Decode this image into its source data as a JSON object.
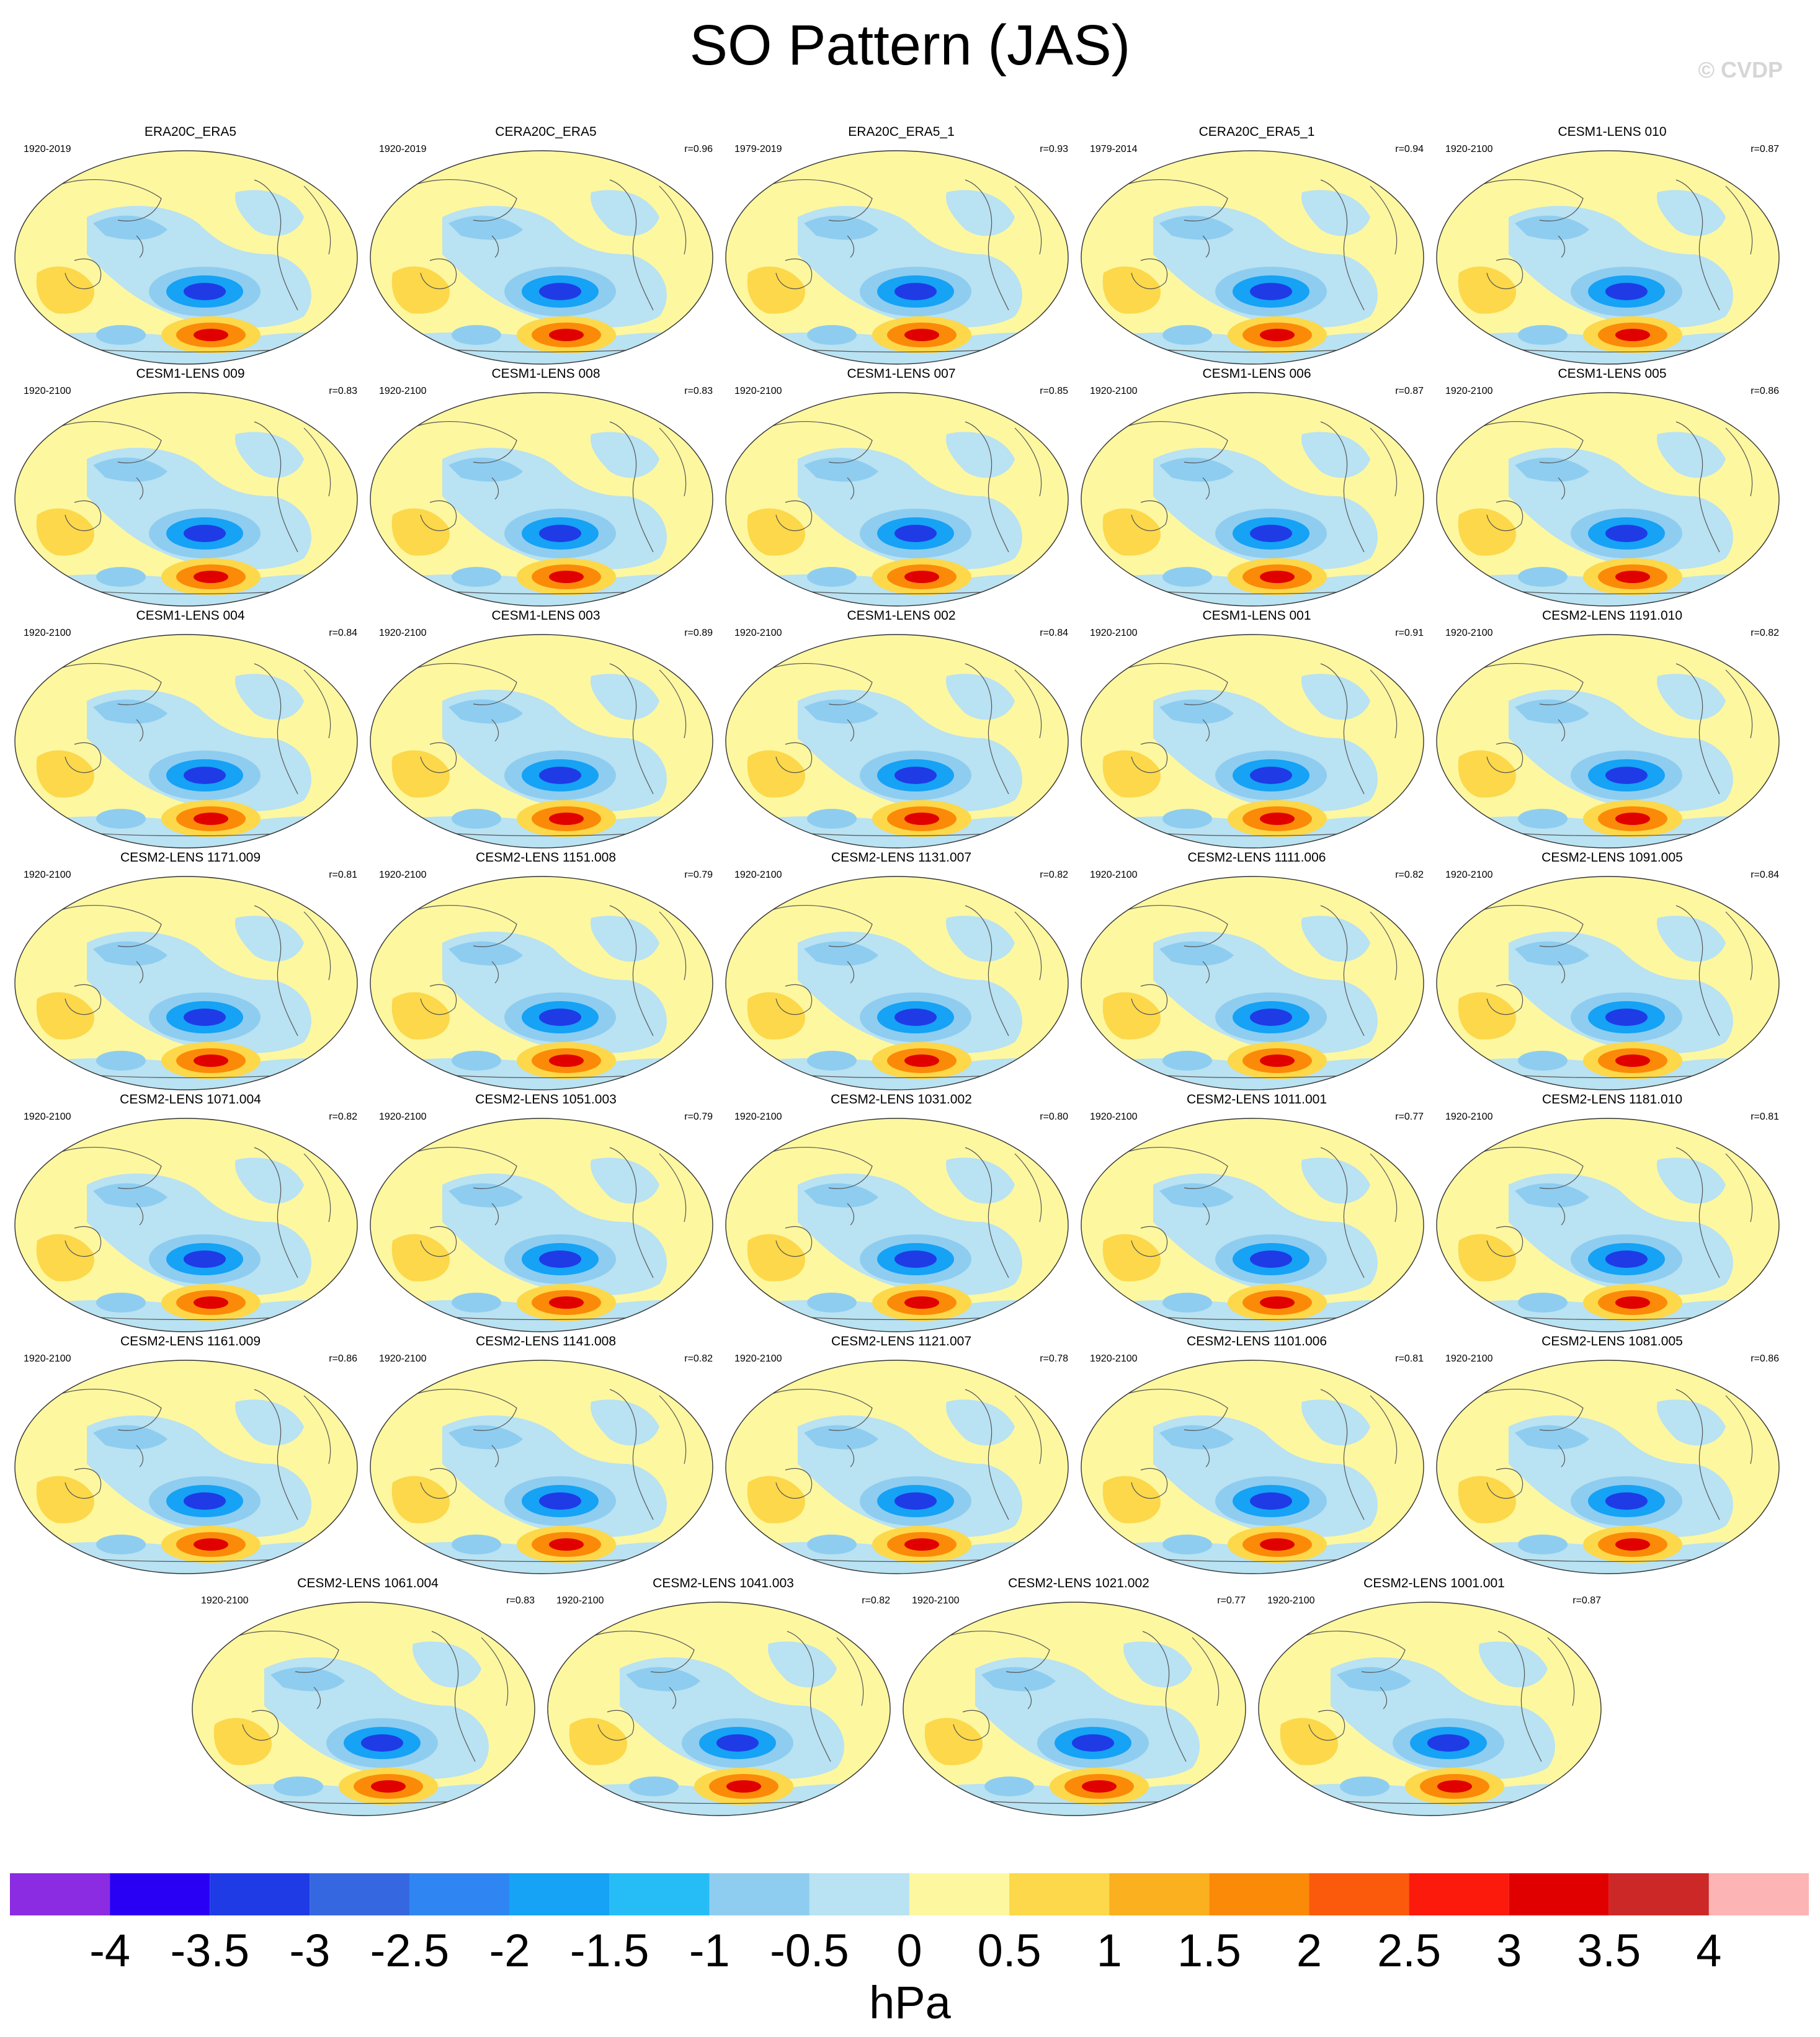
{
  "title": "SO Pattern (JAS)",
  "watermark": "© CVDP",
  "panels": [
    {
      "name": "ERA20C_ERA5",
      "years": "1920-2019",
      "r": ""
    },
    {
      "name": "CERA20C_ERA5",
      "years": "1920-2019",
      "r": "r=0.96"
    },
    {
      "name": "ERA20C_ERA5_1",
      "years": "1979-2019",
      "r": "r=0.93"
    },
    {
      "name": "CERA20C_ERA5_1",
      "years": "1979-2014",
      "r": "r=0.94"
    },
    {
      "name": "CESM1-LENS 010",
      "years": "1920-2100",
      "r": "r=0.87"
    },
    {
      "name": "CESM1-LENS 009",
      "years": "1920-2100",
      "r": "r=0.83"
    },
    {
      "name": "CESM1-LENS 008",
      "years": "1920-2100",
      "r": "r=0.83"
    },
    {
      "name": "CESM1-LENS 007",
      "years": "1920-2100",
      "r": "r=0.85"
    },
    {
      "name": "CESM1-LENS 006",
      "years": "1920-2100",
      "r": "r=0.87"
    },
    {
      "name": "CESM1-LENS 005",
      "years": "1920-2100",
      "r": "r=0.86"
    },
    {
      "name": "CESM1-LENS 004",
      "years": "1920-2100",
      "r": "r=0.84"
    },
    {
      "name": "CESM1-LENS 003",
      "years": "1920-2100",
      "r": "r=0.89"
    },
    {
      "name": "CESM1-LENS 002",
      "years": "1920-2100",
      "r": "r=0.84"
    },
    {
      "name": "CESM1-LENS 001",
      "years": "1920-2100",
      "r": "r=0.91"
    },
    {
      "name": "CESM2-LENS 1191.010",
      "years": "1920-2100",
      "r": "r=0.82"
    },
    {
      "name": "CESM2-LENS 1171.009",
      "years": "1920-2100",
      "r": "r=0.81"
    },
    {
      "name": "CESM2-LENS 1151.008",
      "years": "1920-2100",
      "r": "r=0.79"
    },
    {
      "name": "CESM2-LENS 1131.007",
      "years": "1920-2100",
      "r": "r=0.82"
    },
    {
      "name": "CESM2-LENS 1111.006",
      "years": "1920-2100",
      "r": "r=0.82"
    },
    {
      "name": "CESM2-LENS 1091.005",
      "years": "1920-2100",
      "r": "r=0.84"
    },
    {
      "name": "CESM2-LENS 1071.004",
      "years": "1920-2100",
      "r": "r=0.82"
    },
    {
      "name": "CESM2-LENS 1051.003",
      "years": "1920-2100",
      "r": "r=0.79"
    },
    {
      "name": "CESM2-LENS 1031.002",
      "years": "1920-2100",
      "r": "r=0.80"
    },
    {
      "name": "CESM2-LENS 1011.001",
      "years": "1920-2100",
      "r": "r=0.77"
    },
    {
      "name": "CESM2-LENS 1181.010",
      "years": "1920-2100",
      "r": "r=0.81"
    },
    {
      "name": "CESM2-LENS 1161.009",
      "years": "1920-2100",
      "r": "r=0.86"
    },
    {
      "name": "CESM2-LENS 1141.008",
      "years": "1920-2100",
      "r": "r=0.82"
    },
    {
      "name": "CESM2-LENS 1121.007",
      "years": "1920-2100",
      "r": "r=0.78"
    },
    {
      "name": "CESM2-LENS 1101.006",
      "years": "1920-2100",
      "r": "r=0.81"
    },
    {
      "name": "CESM2-LENS 1081.005",
      "years": "1920-2100",
      "r": "r=0.86"
    },
    {
      "name": "CESM2-LENS 1061.004",
      "years": "1920-2100",
      "r": "r=0.83"
    },
    {
      "name": "CESM2-LENS 1041.003",
      "years": "1920-2100",
      "r": "r=0.82"
    },
    {
      "name": "CESM2-LENS 1021.002",
      "years": "1920-2100",
      "r": "r=0.77"
    },
    {
      "name": "CESM2-LENS 1001.001",
      "years": "1920-2100",
      "r": "r=0.87"
    }
  ],
  "colorbar": {
    "units": "hPa",
    "ticks": [
      "-4",
      "-3.5",
      "-3",
      "-2.5",
      "-2",
      "-1.5",
      "-1",
      "-0.5",
      "0",
      "0.5",
      "1",
      "1.5",
      "2",
      "2.5",
      "3",
      "3.5",
      "4"
    ],
    "colors": [
      "#8b2be2",
      "#2a00f5",
      "#1f3be6",
      "#3568e0",
      "#2f86f2",
      "#16a2f5",
      "#26bdf7",
      "#8ecdf0",
      "#b9e2f2",
      "#fdf7a0",
      "#fcd84a",
      "#fbb020",
      "#fb8a08",
      "#fb5a0c",
      "#fc1a0c",
      "#e00000",
      "#cc2828",
      "#fcb4b4"
    ]
  },
  "palette": {
    "land": "#fdf7a0",
    "ocean_light_blue": "#b9e2f2",
    "ocean_mid_blue": "#8ecdf0",
    "neg_strong": "#16a2f5",
    "neg_core": "#1f3be6",
    "pos_light": "#fcd84a",
    "pos_mid": "#fb8a08",
    "pos_core": "#e00000"
  }
}
